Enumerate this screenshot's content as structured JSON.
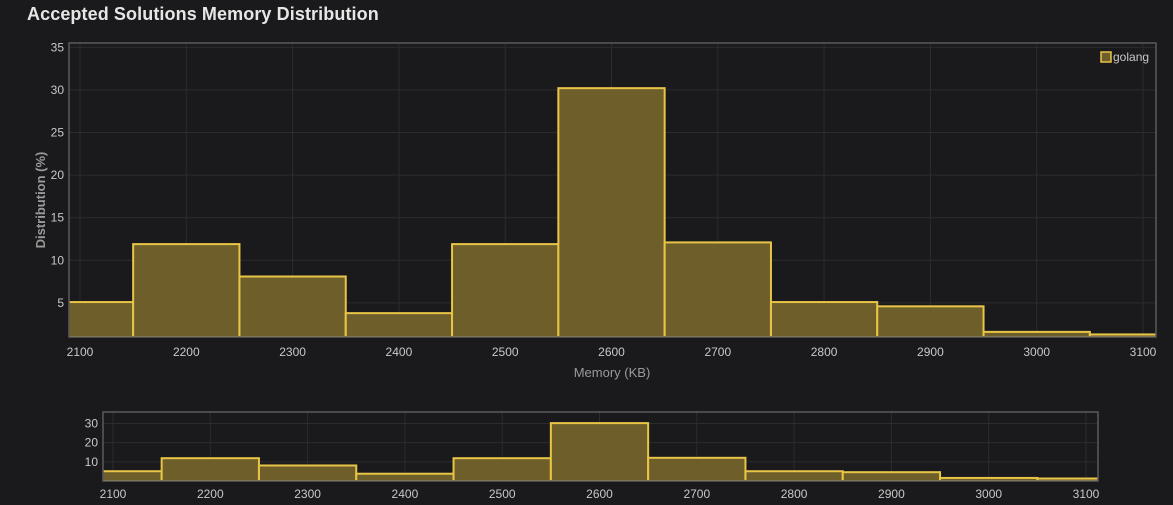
{
  "title": "Accepted Solutions Memory Distribution",
  "chart_data": {
    "type": "bar",
    "title": "Accepted Solutions Memory Distribution",
    "xlabel": "Memory (KB)",
    "ylabel": "Distribution (%)",
    "xlim": [
      2100,
      3100
    ],
    "ylim": [
      1,
      35.5
    ],
    "x_ticks": [
      2100,
      2200,
      2300,
      2400,
      2500,
      2600,
      2700,
      2800,
      2900,
      3000,
      3100
    ],
    "y_ticks": [
      5,
      10,
      15,
      20,
      25,
      30,
      35
    ],
    "bins": [
      {
        "x0": 2050,
        "x1": 2150,
        "value": 5.1
      },
      {
        "x0": 2150,
        "x1": 2250,
        "value": 11.9
      },
      {
        "x0": 2250,
        "x1": 2350,
        "value": 8.1
      },
      {
        "x0": 2350,
        "x1": 2450,
        "value": 3.8
      },
      {
        "x0": 2450,
        "x1": 2550,
        "value": 11.9
      },
      {
        "x0": 2550,
        "x1": 2650,
        "value": 30.2
      },
      {
        "x0": 2650,
        "x1": 2750,
        "value": 12.1
      },
      {
        "x0": 2750,
        "x1": 2850,
        "value": 5.1
      },
      {
        "x0": 2850,
        "x1": 2950,
        "value": 4.6
      },
      {
        "x0": 2950,
        "x1": 3050,
        "value": 1.6
      },
      {
        "x0": 3050,
        "x1": 3150,
        "value": 1.3
      }
    ],
    "series": [
      {
        "name": "golang"
      }
    ],
    "legend": "top-right",
    "grid": true,
    "colors": {
      "fill": "#6e5f2a",
      "stroke": "#e8c547",
      "grid": "#2c2c2e",
      "frame": "#5a5a5a",
      "text": "#c8c8c8",
      "axis_label": "#9a9a9a"
    },
    "navigator": {
      "y_ticks": [
        10,
        20,
        30
      ],
      "ylim": [
        0,
        36
      ]
    }
  }
}
